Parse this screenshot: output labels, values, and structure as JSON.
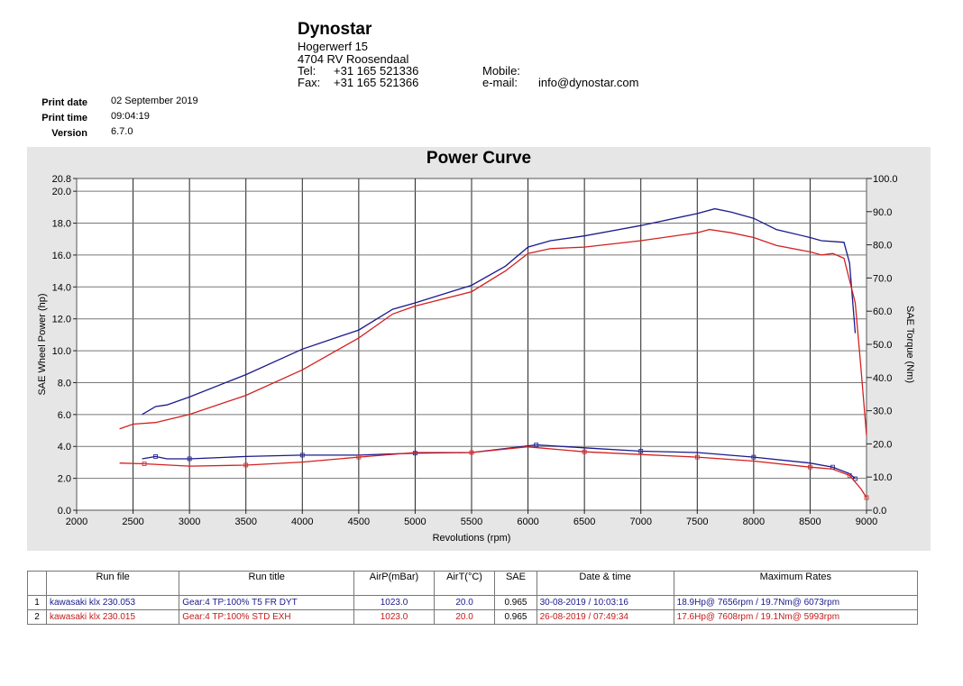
{
  "company": {
    "name": "Dynostar",
    "street": "Hogerwerf 15",
    "city": "4704 RV Roosendaal",
    "tel_label": "Tel:",
    "tel": "+31 165 521336",
    "fax_label": "Fax:",
    "fax": "+31 165 521366",
    "mobile_label": "Mobile:",
    "email_label": "e-mail:",
    "email": "info@dynostar.com"
  },
  "meta": {
    "print_date_label": "Print date",
    "print_date": "02 September 2019",
    "print_time_label": "Print time",
    "print_time": "09:04:19",
    "version_label": "Version",
    "version": "6.7.0"
  },
  "chart_data": {
    "type": "line",
    "title": "Power Curve",
    "xlabel": "Revolutions (rpm)",
    "ylabel": "SAE Wheel Power (hp)",
    "y2label": "SAE Torque (Nm)",
    "xlim": [
      2000,
      9000
    ],
    "ylim": [
      0,
      20.8
    ],
    "y2lim": [
      0,
      100
    ],
    "xticks": [
      "2000",
      "2500",
      "3000",
      "3500",
      "4000",
      "4500",
      "5000",
      "5500",
      "6000",
      "6500",
      "7000",
      "7500",
      "8000",
      "8500",
      "9000"
    ],
    "yticks": [
      "0.0",
      "2.0",
      "4.0",
      "6.0",
      "8.0",
      "10.0",
      "12.0",
      "14.0",
      "16.0",
      "18.0",
      "20.0",
      "20.8"
    ],
    "y2ticks": [
      "0.0",
      "10.0",
      "20.0",
      "30.0",
      "40.0",
      "50.0",
      "60.0",
      "70.0",
      "80.0",
      "90.0",
      "100.0"
    ],
    "colors": {
      "run1": "#1a1a8c",
      "run2": "#d42020"
    },
    "series": [
      {
        "name": "Run 1 power",
        "axis": "left",
        "color": "#1a1a8c",
        "points": [
          [
            2580,
            6.0
          ],
          [
            2700,
            6.5
          ],
          [
            2800,
            6.6
          ],
          [
            3000,
            7.1
          ],
          [
            3500,
            8.5
          ],
          [
            4000,
            10.1
          ],
          [
            4500,
            11.3
          ],
          [
            4800,
            12.6
          ],
          [
            5000,
            13.0
          ],
          [
            5500,
            14.1
          ],
          [
            5800,
            15.3
          ],
          [
            6000,
            16.5
          ],
          [
            6200,
            16.9
          ],
          [
            6500,
            17.2
          ],
          [
            7000,
            17.85
          ],
          [
            7500,
            18.6
          ],
          [
            7656,
            18.9
          ],
          [
            7800,
            18.7
          ],
          [
            8000,
            18.3
          ],
          [
            8200,
            17.6
          ],
          [
            8500,
            17.1
          ],
          [
            8600,
            16.9
          ],
          [
            8800,
            16.8
          ],
          [
            8850,
            15.5
          ],
          [
            8900,
            11.1
          ]
        ]
      },
      {
        "name": "Run 2 power",
        "axis": "left",
        "color": "#d42020",
        "points": [
          [
            2380,
            5.1
          ],
          [
            2500,
            5.4
          ],
          [
            2700,
            5.5
          ],
          [
            3000,
            6.0
          ],
          [
            3500,
            7.2
          ],
          [
            4000,
            8.8
          ],
          [
            4500,
            10.8
          ],
          [
            4800,
            12.3
          ],
          [
            5000,
            12.8
          ],
          [
            5500,
            13.7
          ],
          [
            5800,
            15.0
          ],
          [
            6000,
            16.1
          ],
          [
            6200,
            16.4
          ],
          [
            6500,
            16.5
          ],
          [
            7000,
            16.9
          ],
          [
            7500,
            17.4
          ],
          [
            7608,
            17.6
          ],
          [
            7800,
            17.4
          ],
          [
            8000,
            17.1
          ],
          [
            8200,
            16.6
          ],
          [
            8500,
            16.2
          ],
          [
            8600,
            16.0
          ],
          [
            8700,
            16.1
          ],
          [
            8800,
            15.8
          ],
          [
            8900,
            13.0
          ],
          [
            8950,
            9.0
          ],
          [
            9000,
            4.7
          ]
        ]
      },
      {
        "name": "Run 1 torque",
        "axis": "right",
        "color": "#1a1a8c",
        "points": [
          [
            2580,
            15.5
          ],
          [
            2700,
            16.2
          ],
          [
            2800,
            15.5
          ],
          [
            3000,
            15.5
          ],
          [
            3500,
            16.2
          ],
          [
            4000,
            16.6
          ],
          [
            4500,
            16.6
          ],
          [
            5000,
            17.2
          ],
          [
            5500,
            17.4
          ],
          [
            6073,
            19.7
          ],
          [
            6500,
            18.8
          ],
          [
            7000,
            17.8
          ],
          [
            7500,
            17.4
          ],
          [
            8000,
            16.0
          ],
          [
            8500,
            14.2
          ],
          [
            8700,
            13.0
          ],
          [
            8850,
            11.0
          ],
          [
            8900,
            9.5
          ]
        ]
      },
      {
        "name": "Run 2 torque",
        "axis": "right",
        "color": "#d42020",
        "points": [
          [
            2380,
            14.2
          ],
          [
            2600,
            14.0
          ],
          [
            3000,
            13.3
          ],
          [
            3500,
            13.6
          ],
          [
            4000,
            14.5
          ],
          [
            4500,
            16.0
          ],
          [
            5000,
            17.4
          ],
          [
            5500,
            17.4
          ],
          [
            5993,
            19.1
          ],
          [
            6500,
            17.6
          ],
          [
            7000,
            16.8
          ],
          [
            7500,
            16.0
          ],
          [
            8000,
            14.8
          ],
          [
            8500,
            13.0
          ],
          [
            8700,
            12.4
          ],
          [
            8850,
            10.5
          ],
          [
            8950,
            6.5
          ],
          [
            9000,
            3.8
          ]
        ]
      }
    ]
  },
  "table": {
    "headers": [
      "",
      "Run file",
      "Run title",
      "AirP(mBar)",
      "AirT(°C)",
      "SAE",
      "Date & time",
      "Maximum Rates"
    ],
    "rows": [
      [
        "1",
        "kawasaki klx 230.053",
        "Gear:4 TP:100% T5 FR DYT",
        "1023.0",
        "20.0",
        "0.965",
        "30-08-2019 / 10:03:16",
        "18.9Hp@ 7656rpm / 19.7Nm@ 6073rpm"
      ],
      [
        "2",
        "kawasaki klx 230.015",
        "Gear:4 TP:100%  STD EXH",
        "1023.0",
        "20.0",
        "0.965",
        "26-08-2019 / 07:49:34",
        "17.6Hp@ 7608rpm / 19.1Nm@ 5993rpm"
      ]
    ]
  }
}
